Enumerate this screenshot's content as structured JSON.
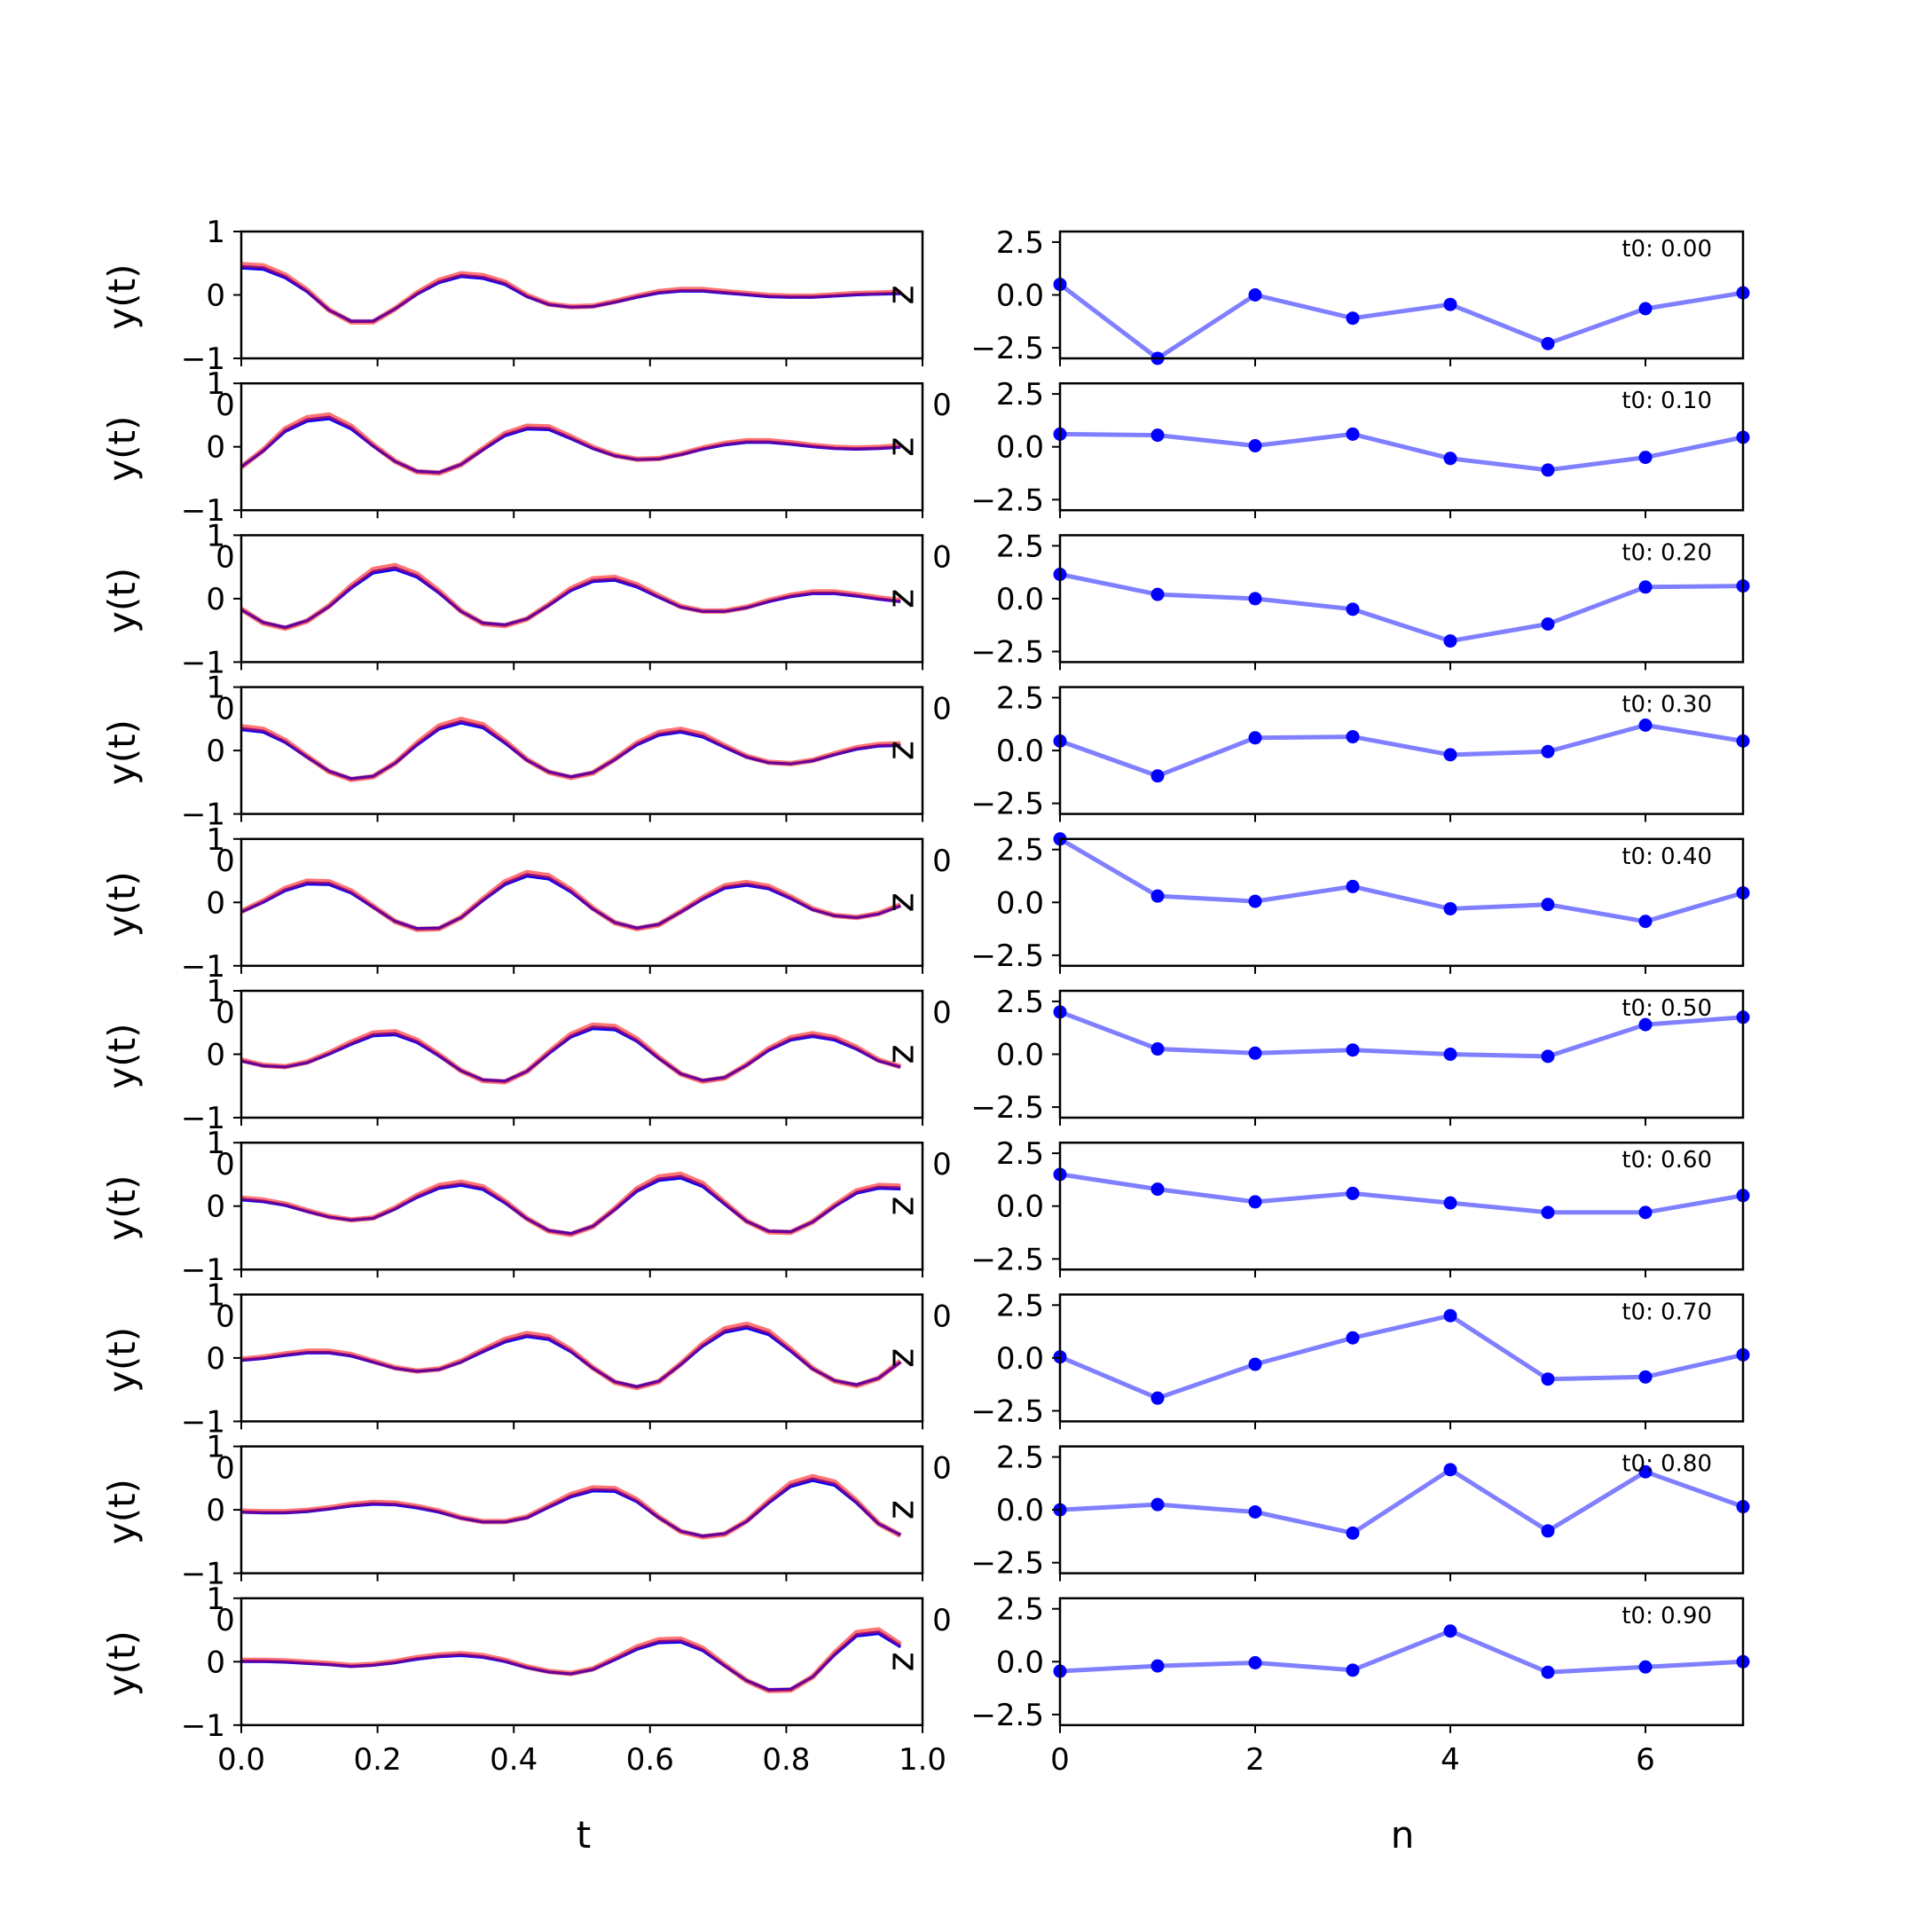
{
  "chart_data": {
    "type": "line",
    "layout": "10 rows x 2 columns of subplots",
    "left": {
      "xlabel": "t",
      "ylabel": "y(t)",
      "xlim": [
        0.0,
        1.0
      ],
      "ylim": [
        -1,
        1
      ],
      "xticks": [
        "0.0",
        "0.2",
        "0.4",
        "0.6",
        "0.8",
        "1.0"
      ],
      "yticks": [
        "1",
        "0",
        "−1"
      ],
      "overlap_tick_left": "0",
      "overlap_tick_right": "0",
      "series_colors": {
        "blue": "#0000ff",
        "red": "#ff5a5a",
        "purple": "#800080"
      },
      "x": [
        0.0,
        0.0323,
        0.0645,
        0.0968,
        0.129,
        0.1613,
        0.1935,
        0.2258,
        0.2581,
        0.2903,
        0.3226,
        0.3548,
        0.3871,
        0.4194,
        0.4516,
        0.4839,
        0.5161,
        0.5484,
        0.5806,
        0.6129,
        0.6452,
        0.6774,
        0.7097,
        0.7419,
        0.7742,
        0.8065,
        0.8387,
        0.871,
        0.9032,
        0.9355,
        0.9677
      ],
      "rows": [
        {
          "y": [
            0.45,
            0.43,
            0.29,
            0.06,
            -0.24,
            -0.42,
            -0.42,
            -0.22,
            0.02,
            0.21,
            0.31,
            0.28,
            0.18,
            -0.02,
            -0.15,
            -0.19,
            -0.18,
            -0.11,
            -0.03,
            0.04,
            0.07,
            0.07,
            0.04,
            0.01,
            -0.02,
            -0.03,
            -0.03,
            -0.01,
            0.01,
            0.02,
            0.03
          ]
        },
        {
          "y": [
            -0.32,
            -0.06,
            0.26,
            0.43,
            0.47,
            0.3,
            0.02,
            -0.23,
            -0.39,
            -0.41,
            -0.28,
            -0.04,
            0.19,
            0.3,
            0.29,
            0.14,
            -0.02,
            -0.14,
            -0.2,
            -0.19,
            -0.12,
            -0.03,
            0.04,
            0.08,
            0.08,
            0.05,
            0.01,
            -0.02,
            -0.03,
            -0.02,
            0.0
          ]
        },
        {
          "y": [
            -0.17,
            -0.38,
            -0.46,
            -0.35,
            -0.12,
            0.18,
            0.43,
            0.49,
            0.36,
            0.1,
            -0.2,
            -0.39,
            -0.42,
            -0.32,
            -0.1,
            0.14,
            0.29,
            0.31,
            0.2,
            0.03,
            -0.13,
            -0.2,
            -0.2,
            -0.14,
            -0.04,
            0.04,
            0.09,
            0.09,
            0.05,
            0.0,
            -0.04
          ]
        },
        {
          "y": [
            0.35,
            0.31,
            0.14,
            -0.1,
            -0.33,
            -0.45,
            -0.41,
            -0.2,
            0.1,
            0.36,
            0.46,
            0.38,
            0.13,
            -0.15,
            -0.34,
            -0.42,
            -0.35,
            -0.14,
            0.1,
            0.26,
            0.31,
            0.23,
            0.06,
            -0.1,
            -0.19,
            -0.21,
            -0.16,
            -0.06,
            0.03,
            0.08,
            0.09
          ]
        },
        {
          "y": [
            -0.15,
            0.01,
            0.2,
            0.31,
            0.3,
            0.16,
            -0.07,
            -0.3,
            -0.42,
            -0.41,
            -0.24,
            0.04,
            0.3,
            0.44,
            0.39,
            0.18,
            -0.1,
            -0.32,
            -0.41,
            -0.35,
            -0.15,
            0.06,
            0.24,
            0.29,
            0.23,
            0.07,
            -0.11,
            -0.21,
            -0.24,
            -0.18,
            -0.05
          ]
        },
        {
          "y": [
            -0.1,
            -0.18,
            -0.2,
            -0.13,
            0.01,
            0.17,
            0.31,
            0.33,
            0.2,
            -0.02,
            -0.26,
            -0.41,
            -0.43,
            -0.27,
            0.02,
            0.29,
            0.43,
            0.41,
            0.22,
            -0.06,
            -0.31,
            -0.42,
            -0.37,
            -0.17,
            0.07,
            0.24,
            0.3,
            0.24,
            0.09,
            -0.1,
            -0.2
          ]
        },
        {
          "y": [
            0.11,
            0.08,
            0.02,
            -0.08,
            -0.17,
            -0.22,
            -0.19,
            -0.04,
            0.15,
            0.3,
            0.35,
            0.28,
            0.06,
            -0.2,
            -0.39,
            -0.44,
            -0.32,
            -0.05,
            0.25,
            0.43,
            0.47,
            0.33,
            0.04,
            -0.24,
            -0.4,
            -0.41,
            -0.25,
            0.0,
            0.22,
            0.3,
            0.29
          ]
        },
        {
          "y": [
            -0.03,
            0.0,
            0.05,
            0.09,
            0.09,
            0.04,
            -0.06,
            -0.16,
            -0.21,
            -0.18,
            -0.06,
            0.11,
            0.27,
            0.36,
            0.31,
            0.11,
            -0.16,
            -0.38,
            -0.46,
            -0.37,
            -0.1,
            0.2,
            0.43,
            0.5,
            0.39,
            0.12,
            -0.17,
            -0.36,
            -0.43,
            -0.32,
            -0.06
          ]
        },
        {
          "y": [
            -0.03,
            -0.04,
            -0.04,
            -0.02,
            0.02,
            0.07,
            0.1,
            0.09,
            0.04,
            -0.03,
            -0.13,
            -0.19,
            -0.19,
            -0.12,
            0.05,
            0.22,
            0.32,
            0.31,
            0.14,
            -0.12,
            -0.34,
            -0.42,
            -0.38,
            -0.18,
            0.12,
            0.39,
            0.49,
            0.41,
            0.12,
            -0.22,
            -0.4
          ]
        },
        {
          "y": [
            0.01,
            0.01,
            0.0,
            -0.02,
            -0.04,
            -0.07,
            -0.05,
            -0.01,
            0.05,
            0.09,
            0.11,
            0.08,
            0.01,
            -0.09,
            -0.16,
            -0.19,
            -0.12,
            0.04,
            0.21,
            0.32,
            0.33,
            0.19,
            -0.06,
            -0.3,
            -0.45,
            -0.44,
            -0.24,
            0.12,
            0.43,
            0.47,
            0.25
          ]
        }
      ]
    },
    "right": {
      "xlabel": "n",
      "xlim": [
        0,
        7
      ],
      "ylim": [
        -3,
        3
      ],
      "xticks": [
        "0",
        "2",
        "4",
        "6"
      ],
      "yticks": [
        "2.5",
        "0.0",
        "−2.5"
      ],
      "series_color": "#0000ff",
      "x": [
        0,
        1,
        2,
        3,
        4,
        5,
        6,
        7
      ],
      "rows": [
        {
          "label": "t0: 0.00",
          "y": [
            0.5,
            -3.0,
            0.0,
            -1.1,
            -0.45,
            -2.3,
            -0.65,
            0.1
          ]
        },
        {
          "label": "t0: 0.10",
          "y": [
            0.6,
            0.55,
            0.05,
            0.6,
            -0.55,
            -1.1,
            -0.5,
            0.45
          ]
        },
        {
          "label": "t0: 0.20",
          "y": [
            1.15,
            0.2,
            0.0,
            -0.5,
            -2.0,
            -1.2,
            0.55,
            0.6
          ]
        },
        {
          "label": "t0: 0.30",
          "y": [
            0.45,
            -1.2,
            0.6,
            0.65,
            -0.2,
            -0.05,
            1.2,
            0.45
          ]
        },
        {
          "label": "t0: 0.40",
          "y": [
            3.0,
            0.3,
            0.05,
            0.75,
            -0.3,
            -0.1,
            -0.9,
            0.45
          ]
        },
        {
          "label": "t0: 0.50",
          "y": [
            2.0,
            0.25,
            0.05,
            0.2,
            0.0,
            -0.1,
            1.4,
            1.75
          ]
        },
        {
          "label": "t0: 0.60",
          "y": [
            1.5,
            0.8,
            0.2,
            0.6,
            0.15,
            -0.3,
            -0.3,
            0.5
          ]
        },
        {
          "label": "t0: 0.70",
          "y": [
            0.05,
            -1.9,
            -0.3,
            0.95,
            2.0,
            -1.0,
            -0.9,
            0.15
          ]
        },
        {
          "label": "t0: 0.80",
          "y": [
            0.0,
            0.25,
            -0.1,
            -1.1,
            1.9,
            -1.0,
            1.8,
            0.15
          ]
        },
        {
          "label": "t0: 0.90",
          "y": [
            -0.45,
            -0.2,
            -0.05,
            -0.4,
            1.45,
            -0.5,
            -0.25,
            0.0
          ]
        }
      ]
    }
  }
}
